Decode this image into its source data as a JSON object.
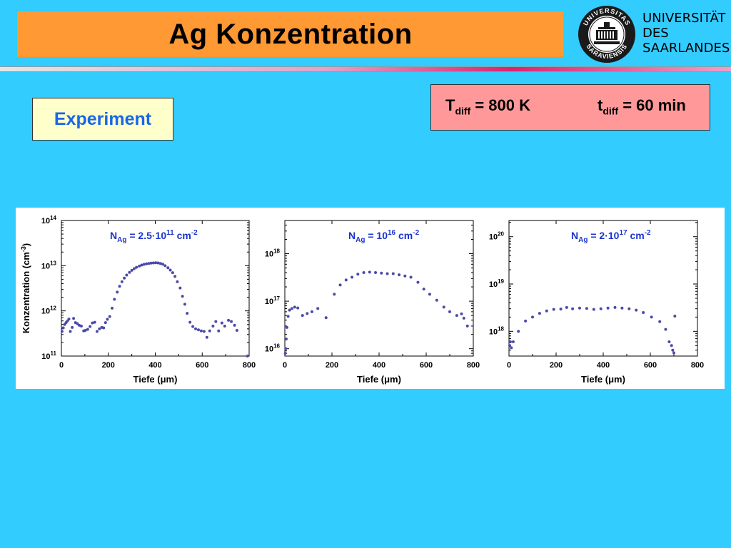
{
  "slide": {
    "title": "Ag Konzentration",
    "experiment_label": "Experiment",
    "conditions": {
      "t_diff_var": "T",
      "t_diff_sub": "diff",
      "t_diff_value": " = 800 K",
      "time_var": "t",
      "time_sub": "diff",
      "time_value": " = 60 min"
    },
    "university": {
      "line1": "UNIVERSITÄT",
      "line2": "DES",
      "line3": "SAARLANDES",
      "seal_text": "UNIVERSITAS SARAVIENSIS"
    }
  },
  "colors": {
    "background": "#33ccff",
    "title_bar": "#ff9933",
    "experiment_box": "#ffffcc",
    "condition_box": "#ff9999",
    "marker": "#4a4aa8",
    "annotation": "#1a33cc"
  },
  "chart_data": [
    {
      "type": "scatter",
      "yscale": "log",
      "ylabel": "Konzentration  (cm-3)",
      "xlabel": "Tiefe  (μm)",
      "xlim": [
        0,
        800
      ],
      "ylim": [
        100000000000.0,
        100000000000000.0
      ],
      "xticks": [
        0,
        200,
        400,
        600,
        800
      ],
      "yticks": [
        {
          "base": "10",
          "exp": "11"
        },
        {
          "base": "10",
          "exp": "12"
        },
        {
          "base": "10",
          "exp": "13"
        },
        {
          "base": "10",
          "exp": "14"
        }
      ],
      "annotation": {
        "main": "N",
        "sub": "Ag",
        "eq": " = 2.5·10",
        "sup": "11",
        "unit": " cm",
        "unit_sup": "-2"
      },
      "x": [
        3,
        8,
        14,
        20,
        26,
        32,
        38,
        46,
        52,
        60,
        68,
        76,
        85,
        95,
        102,
        112,
        122,
        132,
        142,
        152,
        162,
        172,
        180,
        188,
        196,
        206,
        216,
        226,
        238,
        248,
        258,
        268,
        278,
        290,
        300,
        310,
        320,
        332,
        342,
        352,
        362,
        372,
        382,
        392,
        402,
        412,
        422,
        432,
        442,
        454,
        464,
        474,
        484,
        494,
        506,
        516,
        526,
        536,
        548,
        560,
        572,
        584,
        596,
        608,
        620,
        632,
        646,
        658,
        670,
        684,
        696,
        712,
        724,
        738,
        748,
        793
      ],
      "y": [
        350000000000.0,
        420000000000.0,
        500000000000.0,
        550000000000.0,
        600000000000.0,
        660000000000.0,
        350000000000.0,
        430000000000.0,
        680000000000.0,
        550000000000.0,
        520000000000.0,
        480000000000.0,
        460000000000.0,
        360000000000.0,
        370000000000.0,
        390000000000.0,
        450000000000.0,
        540000000000.0,
        560000000000.0,
        350000000000.0,
        400000000000.0,
        430000000000.0,
        420000000000.0,
        550000000000.0,
        650000000000.0,
        750000000000.0,
        1150000000000.0,
        1800000000000.0,
        2600000000000.0,
        3500000000000.0,
        4400000000000.0,
        5300000000000.0,
        6200000000000.0,
        7100000000000.0,
        7900000000000.0,
        8600000000000.0,
        9200000000000.0,
        9800000000000.0,
        10300000000000.0,
        10700000000000.0,
        11000000000000.0,
        11200000000000.0,
        11400000000000.0,
        11500000000000.0,
        11600000000000.0,
        11500000000000.0,
        11200000000000.0,
        10800000000000.0,
        10000000000000.0,
        9000000000000.0,
        8000000000000.0,
        7000000000000.0,
        5800000000000.0,
        4400000000000.0,
        3200000000000.0,
        2100000000000.0,
        1400000000000.0,
        880000000000.0,
        560000000000.0,
        450000000000.0,
        400000000000.0,
        380000000000.0,
        360000000000.0,
        350000000000.0,
        260000000000.0,
        360000000000.0,
        460000000000.0,
        580000000000.0,
        360000000000.0,
        540000000000.0,
        460000000000.0,
        620000000000.0,
        580000000000.0,
        480000000000.0,
        370000000000.0,
        100000000000.0
      ]
    },
    {
      "type": "scatter",
      "yscale": "log",
      "ylabel": "",
      "xlabel": "Tiefe  (μm)",
      "xlim": [
        0,
        800
      ],
      "ylim": [
        7000000000000000.0,
        5e+18
      ],
      "xticks": [
        0,
        200,
        400,
        600,
        800
      ],
      "yticks": [
        {
          "base": "10",
          "exp": "16"
        },
        {
          "base": "10",
          "exp": "17"
        },
        {
          "base": "10",
          "exp": "18"
        }
      ],
      "annotation": {
        "main": "N",
        "sub": "Ag",
        "eq": " = 10",
        "sup": "16",
        "unit": " cm",
        "unit_sup": "-2"
      },
      "x": [
        2,
        4,
        6,
        9,
        14,
        20,
        30,
        42,
        55,
        75,
        95,
        115,
        140,
        175,
        210,
        235,
        260,
        285,
        310,
        335,
        360,
        385,
        410,
        435,
        460,
        485,
        510,
        535,
        565,
        590,
        615,
        645,
        675,
        700,
        730,
        750,
        760,
        775
      ],
      "y": [
        8000000000000000.0,
        1e+16,
        1.6e+16,
        2.8e+16,
        4.8e+16,
        6.5e+16,
        7e+16,
        7.5e+16,
        7.2e+16,
        5e+16,
        5.5e+16,
        6e+16,
        7e+16,
        4.5e+16,
        1.4e+17,
        2.2e+17,
        2.8e+17,
        3.2e+17,
        3.7e+17,
        4e+17,
        4.1e+17,
        4e+17,
        3.9e+17,
        3.8e+17,
        3.8e+17,
        3.6e+17,
        3.4e+17,
        3.2e+17,
        2.5e+17,
        1.8e+17,
        1.4e+17,
        1.05e+17,
        7.5e+16,
        6e+16,
        5e+16,
        5.4e+16,
        4.4e+16,
        3e+16
      ]
    },
    {
      "type": "scatter",
      "yscale": "log",
      "ylabel": "",
      "xlabel": "Tiefe  (μm)",
      "xlim": [
        0,
        800
      ],
      "ylim": [
        3e+17,
        2.2e+20
      ],
      "xticks": [
        0,
        200,
        400,
        600,
        800
      ],
      "yticks": [
        {
          "base": "10",
          "exp": "18"
        },
        {
          "base": "10",
          "exp": "19"
        },
        {
          "base": "10",
          "exp": "20"
        }
      ],
      "annotation": {
        "main": "N",
        "sub": "Ag",
        "eq": " = 2·10",
        "sup": "17",
        "unit": " cm",
        "unit_sup": "-2"
      },
      "x": [
        3,
        6,
        10,
        18,
        40,
        70,
        100,
        130,
        160,
        190,
        220,
        245,
        270,
        300,
        330,
        360,
        390,
        420,
        450,
        480,
        510,
        540,
        570,
        605,
        640,
        665,
        680,
        690,
        695,
        700,
        704
      ],
      "y": [
        5e+17,
        6e+17,
        4.5e+17,
        6e+17,
        1e+18,
        1.65e+18,
        2e+18,
        2.4e+18,
        2.7e+18,
        2.9e+18,
        2.95e+18,
        3.2e+18,
        3e+18,
        3.1e+18,
        3.05e+18,
        2.9e+18,
        3e+18,
        3.1e+18,
        3.2e+18,
        3.1e+18,
        3e+18,
        2.8e+18,
        2.5e+18,
        2e+18,
        1.6e+18,
        1.1e+18,
        6e+17,
        5e+17,
        4e+17,
        3.5e+17,
        2.1e+18
      ]
    }
  ]
}
